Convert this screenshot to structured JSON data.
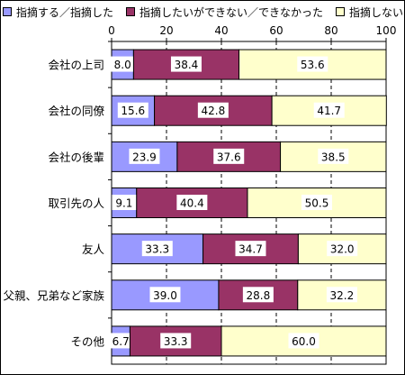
{
  "chart_data": {
    "type": "bar",
    "orientation": "horizontal",
    "stacked": true,
    "xlim": [
      0,
      100
    ],
    "x_ticks": [
      "0",
      "20",
      "40",
      "60",
      "80",
      "100"
    ],
    "grid": "dashed vertical",
    "legend_position": "top",
    "categories": [
      "会社の上司",
      "会社の同僚",
      "会社の後輩",
      "取引先の人",
      "友人",
      "父親、兄弟など家族",
      "その他"
    ],
    "series": [
      {
        "name": "指摘する／指摘した",
        "color": "#9999ff",
        "values": [
          8.0,
          15.6,
          23.9,
          9.1,
          33.3,
          39.0,
          6.7
        ],
        "labels": [
          "8.0",
          "15.6",
          "23.9",
          "9.1",
          "33.3",
          "39.0",
          "6.7"
        ]
      },
      {
        "name": "指摘したいができない／できなかった",
        "color": "#993366",
        "values": [
          38.4,
          42.8,
          37.6,
          40.4,
          34.7,
          28.8,
          33.3
        ],
        "labels": [
          "38.4",
          "42.8",
          "37.6",
          "40.4",
          "34.7",
          "28.8",
          "33.3"
        ]
      },
      {
        "name": "指摘しない",
        "color": "#ffffcc",
        "values": [
          53.6,
          41.7,
          38.5,
          50.5,
          32.0,
          32.2,
          60.0
        ],
        "labels": [
          "53.6",
          "41.7",
          "38.5",
          "50.5",
          "32.0",
          "32.2",
          "60.0"
        ]
      }
    ]
  }
}
